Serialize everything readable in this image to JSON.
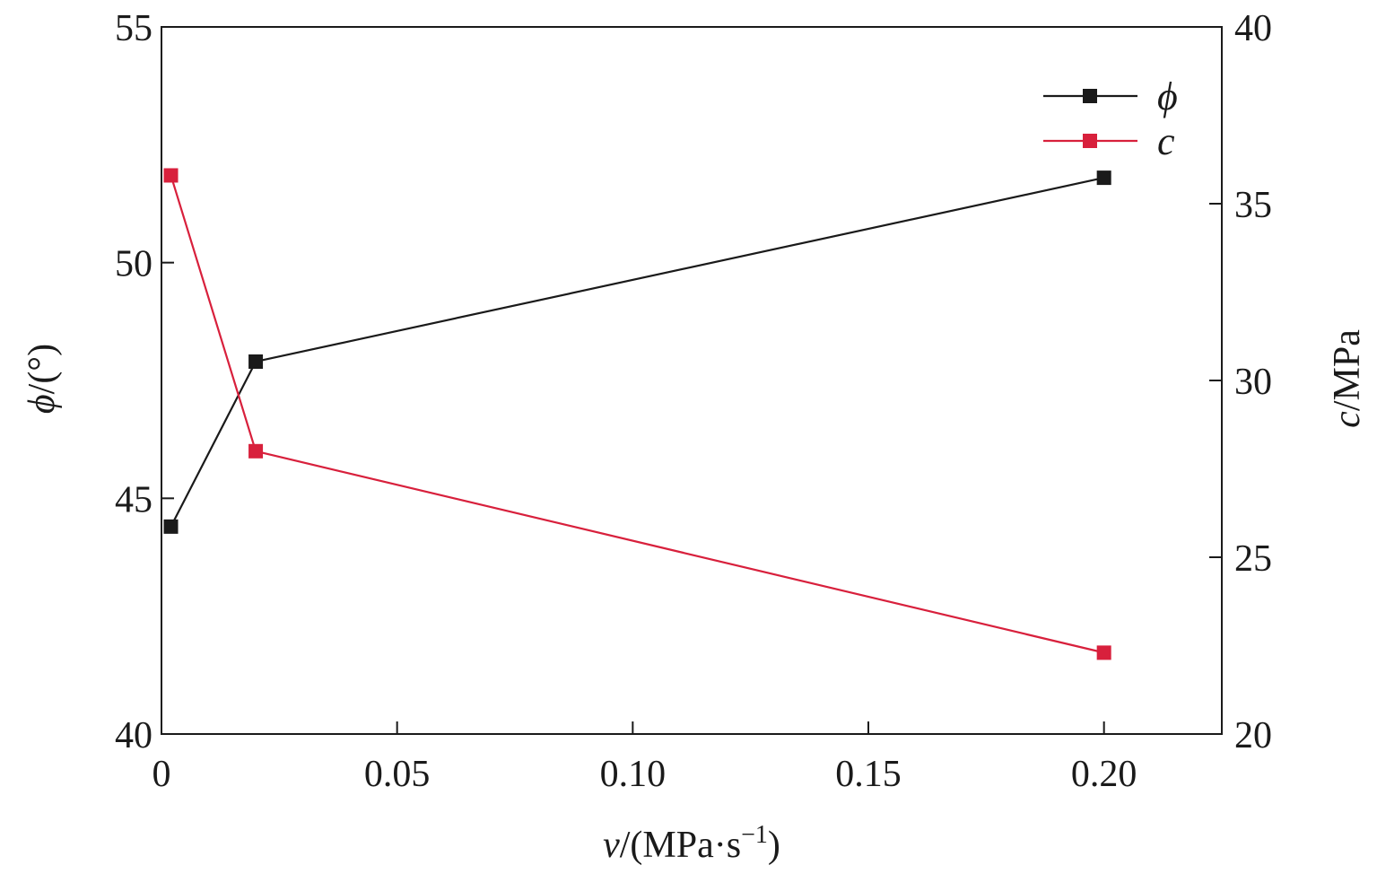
{
  "chart_data": {
    "type": "line",
    "x": [
      0.002,
      0.02,
      0.2
    ],
    "xlim": [
      0,
      0.225
    ],
    "xticks": [
      0,
      0.05,
      0.1,
      0.15,
      0.2
    ],
    "xtick_labels": [
      "0",
      "0.05",
      "0.10",
      "0.15",
      "0.20"
    ],
    "xlabel": {
      "var": "v",
      "rest": "/(MPa·s",
      "sup": "−1",
      "close": ")"
    },
    "y_left": {
      "label_var": "ϕ",
      "label_rest": "/(°)",
      "lim": [
        40,
        55
      ],
      "ticks": [
        40,
        45,
        50,
        55
      ],
      "tick_labels": [
        "40",
        "45",
        "50",
        "55"
      ]
    },
    "y_right": {
      "label_var": "c",
      "label_rest": "/MPa",
      "lim": [
        20,
        40
      ],
      "ticks": [
        20,
        25,
        30,
        35,
        40
      ],
      "tick_labels": [
        "20",
        "25",
        "30",
        "35",
        "40"
      ]
    },
    "series": [
      {
        "name": "ϕ",
        "axis": "left",
        "color": "#1a1a1a",
        "values": [
          44.4,
          47.9,
          51.8
        ]
      },
      {
        "name": "c",
        "axis": "right",
        "color": "#d8203c",
        "values": [
          35.8,
          28.0,
          22.3
        ]
      }
    ],
    "legend": {
      "placement": "top-right"
    },
    "grid": false
  }
}
